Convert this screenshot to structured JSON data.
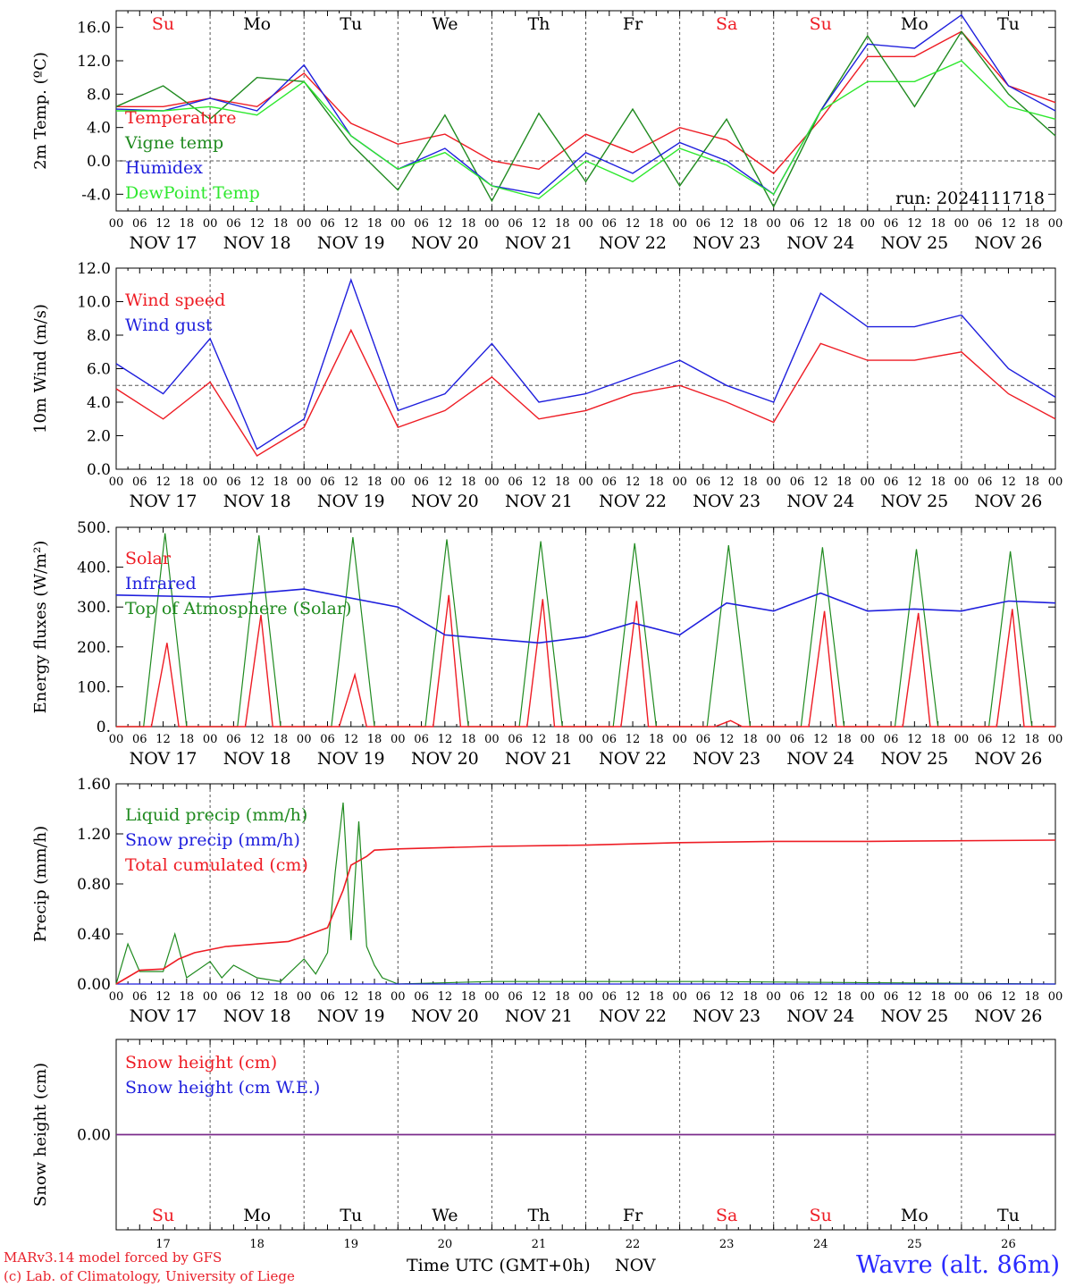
{
  "footer": {
    "credit1": "MARv3.14 model forced by GFS",
    "credit2": "(c) Lab. of Climatology, University of Liege",
    "time_label": "Time UTC (GMT+0h)",
    "month_label": "NOV",
    "station": "Wavre (alt. 86m)"
  },
  "colors": {
    "red": "#ee1c24",
    "green": "#1f8a1f",
    "blue": "#1f1fdd",
    "lightgreen": "#2ee82e",
    "purple": "#7b2b8b"
  },
  "chart_data": [
    {
      "id": "temp",
      "type": "line",
      "ylabel": "2m Temp. (ºC)",
      "ylim": [
        -6.0,
        18.0
      ],
      "yticks": [
        "16.0",
        "12.0",
        "8.0",
        "4.0",
        "0.0",
        "-4.0"
      ],
      "yticks_values": [
        16,
        12,
        8,
        4,
        0,
        -4
      ],
      "ref_line": 0,
      "run_label": "run: 2024111718",
      "day_names": [
        "Su",
        "Mo",
        "Tu",
        "We",
        "Th",
        "Fr",
        "Sa",
        "Su",
        "Mo",
        "Tu"
      ],
      "x_hours": [
        0,
        12,
        24,
        36,
        48,
        60,
        72,
        84,
        96,
        108,
        120,
        132,
        144,
        156,
        168,
        180,
        192,
        204,
        216,
        228,
        240
      ],
      "series": [
        {
          "name": "Temperature",
          "color": "red",
          "values": [
            6.5,
            6.5,
            7.5,
            6.5,
            10.5,
            4.5,
            2.0,
            3.2,
            0,
            -1.0,
            3.2,
            1.0,
            4.0,
            2.5,
            -1.5,
            5.0,
            12.5,
            12.5,
            15.5,
            9.0,
            7.0
          ]
        },
        {
          "name": "Vigne temp",
          "color": "green",
          "values": [
            6.5,
            9.0,
            5.0,
            10.0,
            9.5,
            2.0,
            -3.5,
            5.5,
            -4.8,
            5.7,
            -2.5,
            6.2,
            -3.0,
            5.0,
            -5.5,
            6.0,
            15.0,
            6.5,
            15.5,
            8.0,
            3.0
          ]
        },
        {
          "name": "Humidex",
          "color": "blue",
          "values": [
            6.2,
            6.0,
            7.5,
            6.0,
            11.5,
            3.0,
            -1.0,
            1.5,
            -3.0,
            -4.0,
            1.0,
            -1.5,
            2.2,
            0,
            -4.0,
            6.0,
            14.0,
            13.5,
            17.5,
            9.0,
            6.0
          ]
        },
        {
          "name": "DewPoint Temp",
          "color": "lightgreen",
          "values": [
            6.0,
            6.0,
            6.5,
            5.5,
            9.5,
            3.0,
            -1.0,
            1.0,
            -3.0,
            -4.5,
            0,
            -2.5,
            1.5,
            -0.5,
            -4.0,
            6.0,
            9.5,
            9.5,
            12.0,
            6.5,
            5.0
          ]
        }
      ]
    },
    {
      "id": "wind",
      "type": "line",
      "ylabel": "10m Wind (m/s)",
      "ylim": [
        0.0,
        12.0
      ],
      "yticks": [
        "12.0",
        "10.0",
        "8.0",
        "6.0",
        "4.0",
        "2.0",
        "0.0"
      ],
      "yticks_values": [
        12,
        10,
        8,
        6,
        4,
        2,
        0
      ],
      "ref_line": 5,
      "x_hours": [
        0,
        12,
        24,
        36,
        48,
        60,
        72,
        84,
        96,
        108,
        120,
        132,
        144,
        156,
        168,
        180,
        192,
        204,
        216,
        228,
        240
      ],
      "series": [
        {
          "name": "Wind speed",
          "color": "red",
          "values": [
            4.8,
            3.0,
            5.2,
            0.8,
            2.5,
            8.3,
            2.5,
            3.5,
            5.5,
            3.0,
            3.5,
            4.5,
            5.0,
            4.0,
            2.8,
            7.5,
            6.5,
            6.5,
            7.0,
            4.5,
            3.0
          ]
        },
        {
          "name": "Wind gust",
          "color": "blue",
          "values": [
            6.3,
            4.5,
            7.8,
            1.2,
            3.0,
            11.3,
            3.5,
            4.5,
            7.5,
            4.0,
            4.5,
            5.5,
            6.5,
            5.0,
            4.0,
            10.5,
            8.5,
            8.5,
            9.2,
            6.0,
            4.3
          ]
        }
      ]
    },
    {
      "id": "energy",
      "type": "line",
      "ylabel": "Energy fluxes (W/m²)",
      "ylim": [
        0,
        500
      ],
      "yticks": [
        "500.",
        "400.",
        "300.",
        "200.",
        "100.",
        "0."
      ],
      "yticks_values": [
        500,
        400,
        300,
        200,
        100,
        0
      ],
      "toa_peaks": [
        485,
        480,
        475,
        470,
        465,
        460,
        455,
        450,
        445,
        440
      ],
      "solar_peaks": [
        210,
        280,
        130,
        330,
        320,
        315,
        15,
        290,
        285,
        295
      ],
      "infrared": {
        "x_hours": [
          0,
          24,
          48,
          72,
          84,
          96,
          108,
          120,
          132,
          144,
          156,
          168,
          180,
          192,
          204,
          216,
          228,
          240
        ],
        "values": [
          330,
          325,
          345,
          300,
          230,
          220,
          210,
          225,
          260,
          230,
          310,
          290,
          335,
          290,
          295,
          290,
          315,
          310
        ]
      },
      "series": [
        {
          "name": "Solar",
          "color": "red"
        },
        {
          "name": "Infrared",
          "color": "blue"
        },
        {
          "name": "Top of Atmosphere (Solar)",
          "color": "green"
        }
      ]
    },
    {
      "id": "precip",
      "type": "line",
      "ylabel": "Precip (mm/h)",
      "ylim": [
        0.0,
        1.6
      ],
      "yticks": [
        "1.60",
        "1.20",
        "0.80",
        "0.40",
        "0.00"
      ],
      "yticks_values": [
        1.6,
        1.2,
        0.8,
        0.4,
        0
      ],
      "series": [
        {
          "name": "Liquid precip (mm/h)",
          "color": "green",
          "x_hours": [
            0,
            3,
            6,
            12,
            15,
            18,
            24,
            27,
            30,
            36,
            42,
            48,
            51,
            54,
            56,
            58,
            60,
            62,
            64,
            66,
            68,
            72,
            96,
            150,
            240
          ],
          "values": [
            0.0,
            0.32,
            0.1,
            0.1,
            0.4,
            0.05,
            0.18,
            0.05,
            0.15,
            0.05,
            0.02,
            0.2,
            0.08,
            0.25,
            0.9,
            1.45,
            0.35,
            1.3,
            0.3,
            0.15,
            0.05,
            0.0,
            0.02,
            0.02,
            0.0
          ]
        },
        {
          "name": "Snow precip (mm/h)",
          "color": "blue",
          "x_hours": [
            0,
            240
          ],
          "values": [
            0,
            0
          ]
        },
        {
          "name": "Total cumulated (cm)",
          "color": "red",
          "x_hours": [
            0,
            6,
            12,
            16,
            20,
            28,
            36,
            44,
            48,
            54,
            58,
            60,
            64,
            66,
            72,
            96,
            120,
            144,
            168,
            192,
            240
          ],
          "values": [
            0.0,
            0.11,
            0.12,
            0.2,
            0.25,
            0.3,
            0.32,
            0.34,
            0.38,
            0.45,
            0.75,
            0.95,
            1.02,
            1.07,
            1.08,
            1.1,
            1.11,
            1.13,
            1.14,
            1.14,
            1.15
          ]
        }
      ]
    },
    {
      "id": "snow",
      "type": "line",
      "ylabel": "Snow height (cm)",
      "ylim": [
        -1,
        1
      ],
      "yticks": [
        "0.00"
      ],
      "yticks_values": [
        0
      ],
      "series": [
        {
          "name": "Snow height (cm)",
          "color": "red",
          "values": [
            0,
            0
          ]
        },
        {
          "name": "Snow height (cm W.E.)",
          "color": "blue",
          "values": [
            0,
            0
          ]
        }
      ]
    }
  ],
  "x_axis": {
    "hour_labels": [
      "00",
      "06",
      "12",
      "18"
    ],
    "end_label": "00",
    "dates": [
      "NOV 17",
      "NOV 18",
      "NOV 19",
      "NOV 20",
      "NOV 21",
      "NOV 22",
      "NOV 23",
      "NOV 24",
      "NOV 25",
      "NOV 26"
    ],
    "day_numbers": [
      "17",
      "18",
      "19",
      "20",
      "21",
      "22",
      "23",
      "24",
      "25",
      "26"
    ],
    "weekend_day_indices": [
      0,
      6,
      7
    ]
  }
}
